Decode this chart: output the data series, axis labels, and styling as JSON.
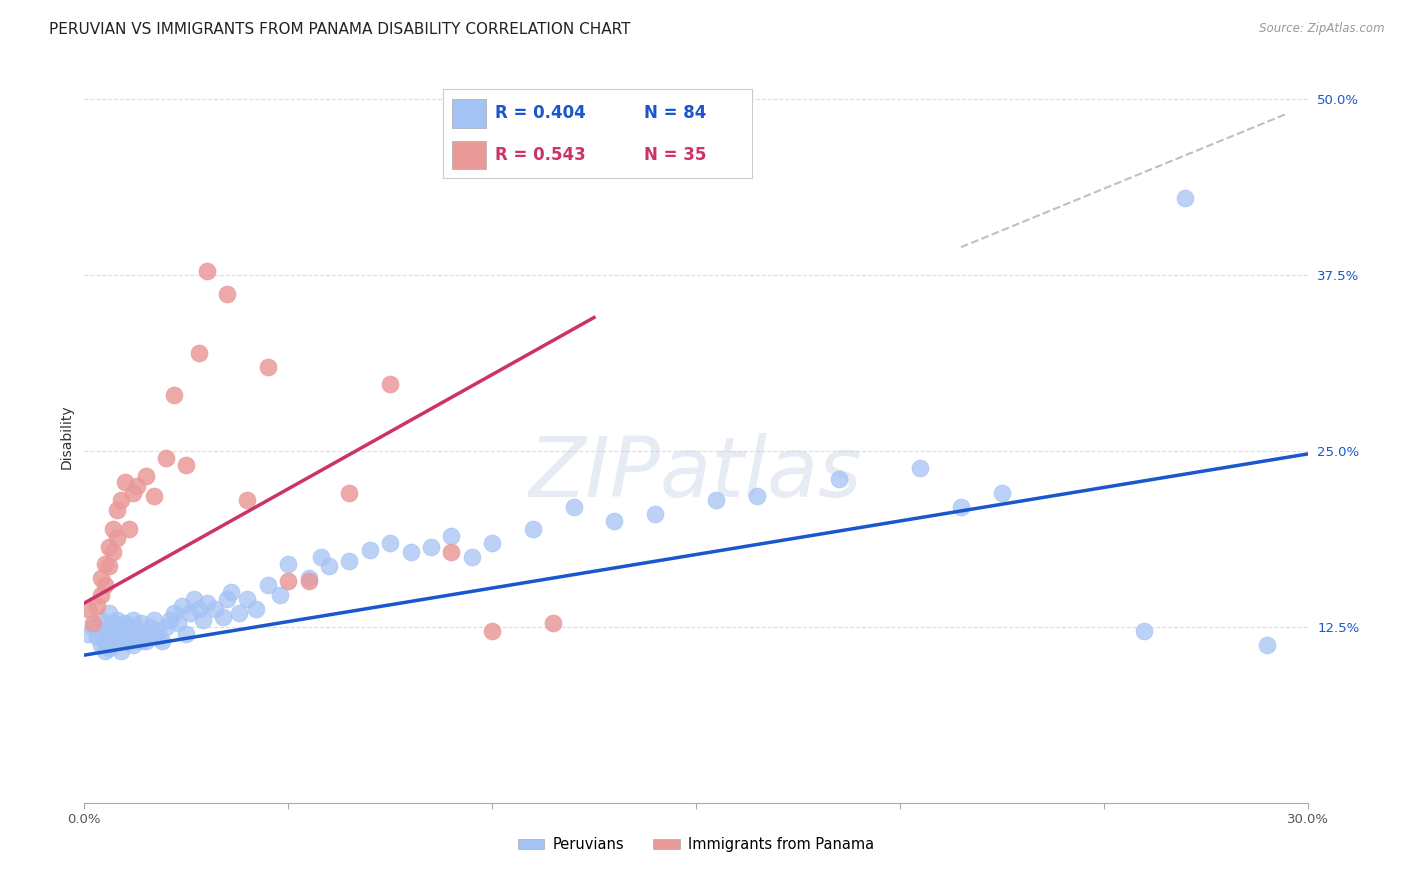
{
  "title": "PERUVIAN VS IMMIGRANTS FROM PANAMA DISABILITY CORRELATION CHART",
  "source": "Source: ZipAtlas.com",
  "ylabel": "Disability",
  "xlim": [
    0.0,
    0.3
  ],
  "ylim": [
    0.0,
    0.52
  ],
  "xticks": [
    0.0,
    0.05,
    0.1,
    0.15,
    0.2,
    0.25,
    0.3
  ],
  "xticklabels": [
    "0.0%",
    "",
    "",
    "",
    "",
    "",
    "30.0%"
  ],
  "yticks": [
    0.0,
    0.125,
    0.25,
    0.375,
    0.5
  ],
  "yticklabels": [
    "",
    "12.5%",
    "25.0%",
    "37.5%",
    "50.0%"
  ],
  "legend_blue_r": "R = 0.404",
  "legend_blue_n": "N = 84",
  "legend_pink_r": "R = 0.543",
  "legend_pink_n": "N = 35",
  "blue_color": "#a4c2f4",
  "pink_color": "#ea9999",
  "blue_line_color": "#1a56cc",
  "pink_line_color": "#cc3366",
  "dashed_line_color": "#c0c0c0",
  "watermark": "ZIPatlas",
  "blue_scatter_x": [
    0.001,
    0.002,
    0.003,
    0.004,
    0.004,
    0.005,
    0.005,
    0.005,
    0.006,
    0.006,
    0.006,
    0.007,
    0.007,
    0.007,
    0.008,
    0.008,
    0.008,
    0.009,
    0.009,
    0.009,
    0.01,
    0.01,
    0.01,
    0.011,
    0.011,
    0.012,
    0.012,
    0.013,
    0.013,
    0.014,
    0.014,
    0.015,
    0.015,
    0.016,
    0.016,
    0.017,
    0.018,
    0.018,
    0.019,
    0.02,
    0.021,
    0.022,
    0.023,
    0.024,
    0.025,
    0.026,
    0.027,
    0.028,
    0.029,
    0.03,
    0.032,
    0.034,
    0.035,
    0.036,
    0.038,
    0.04,
    0.042,
    0.045,
    0.048,
    0.05,
    0.055,
    0.058,
    0.06,
    0.065,
    0.07,
    0.075,
    0.08,
    0.085,
    0.09,
    0.095,
    0.1,
    0.11,
    0.12,
    0.13,
    0.14,
    0.155,
    0.165,
    0.185,
    0.205,
    0.215,
    0.225,
    0.26,
    0.27,
    0.29
  ],
  "blue_scatter_y": [
    0.12,
    0.125,
    0.118,
    0.112,
    0.13,
    0.115,
    0.122,
    0.108,
    0.125,
    0.11,
    0.135,
    0.12,
    0.128,
    0.115,
    0.122,
    0.118,
    0.13,
    0.115,
    0.125,
    0.108,
    0.12,
    0.128,
    0.115,
    0.118,
    0.125,
    0.112,
    0.13,
    0.118,
    0.122,
    0.115,
    0.128,
    0.12,
    0.115,
    0.118,
    0.125,
    0.13,
    0.122,
    0.118,
    0.115,
    0.125,
    0.13,
    0.135,
    0.128,
    0.14,
    0.12,
    0.135,
    0.145,
    0.138,
    0.13,
    0.142,
    0.138,
    0.132,
    0.145,
    0.15,
    0.135,
    0.145,
    0.138,
    0.155,
    0.148,
    0.17,
    0.16,
    0.175,
    0.168,
    0.172,
    0.18,
    0.185,
    0.178,
    0.182,
    0.19,
    0.175,
    0.185,
    0.195,
    0.21,
    0.2,
    0.205,
    0.215,
    0.218,
    0.23,
    0.238,
    0.21,
    0.22,
    0.122,
    0.43,
    0.112
  ],
  "pink_scatter_x": [
    0.001,
    0.002,
    0.003,
    0.004,
    0.004,
    0.005,
    0.005,
    0.006,
    0.006,
    0.007,
    0.007,
    0.008,
    0.008,
    0.009,
    0.01,
    0.011,
    0.012,
    0.013,
    0.015,
    0.017,
    0.02,
    0.022,
    0.025,
    0.028,
    0.03,
    0.035,
    0.04,
    0.045,
    0.05,
    0.055,
    0.065,
    0.075,
    0.09,
    0.1,
    0.115
  ],
  "pink_scatter_y": [
    0.138,
    0.128,
    0.14,
    0.148,
    0.16,
    0.155,
    0.17,
    0.168,
    0.182,
    0.178,
    0.195,
    0.208,
    0.188,
    0.215,
    0.228,
    0.195,
    0.22,
    0.225,
    0.232,
    0.218,
    0.245,
    0.29,
    0.24,
    0.32,
    0.378,
    0.362,
    0.215,
    0.31,
    0.158,
    0.158,
    0.22,
    0.298,
    0.178,
    0.122,
    0.128
  ],
  "blue_trendline_x": [
    0.0,
    0.3
  ],
  "blue_trendline_y": [
    0.105,
    0.248
  ],
  "pink_trendline_x": [
    0.0,
    0.125
  ],
  "pink_trendline_y": [
    0.142,
    0.345
  ],
  "dashed_trendline_x": [
    0.215,
    0.295
  ],
  "dashed_trendline_y": [
    0.395,
    0.49
  ],
  "grid_color": "#dddddd",
  "background_color": "#ffffff",
  "title_fontsize": 11,
  "axis_label_fontsize": 10,
  "tick_fontsize": 9.5,
  "legend_fontsize": 12
}
